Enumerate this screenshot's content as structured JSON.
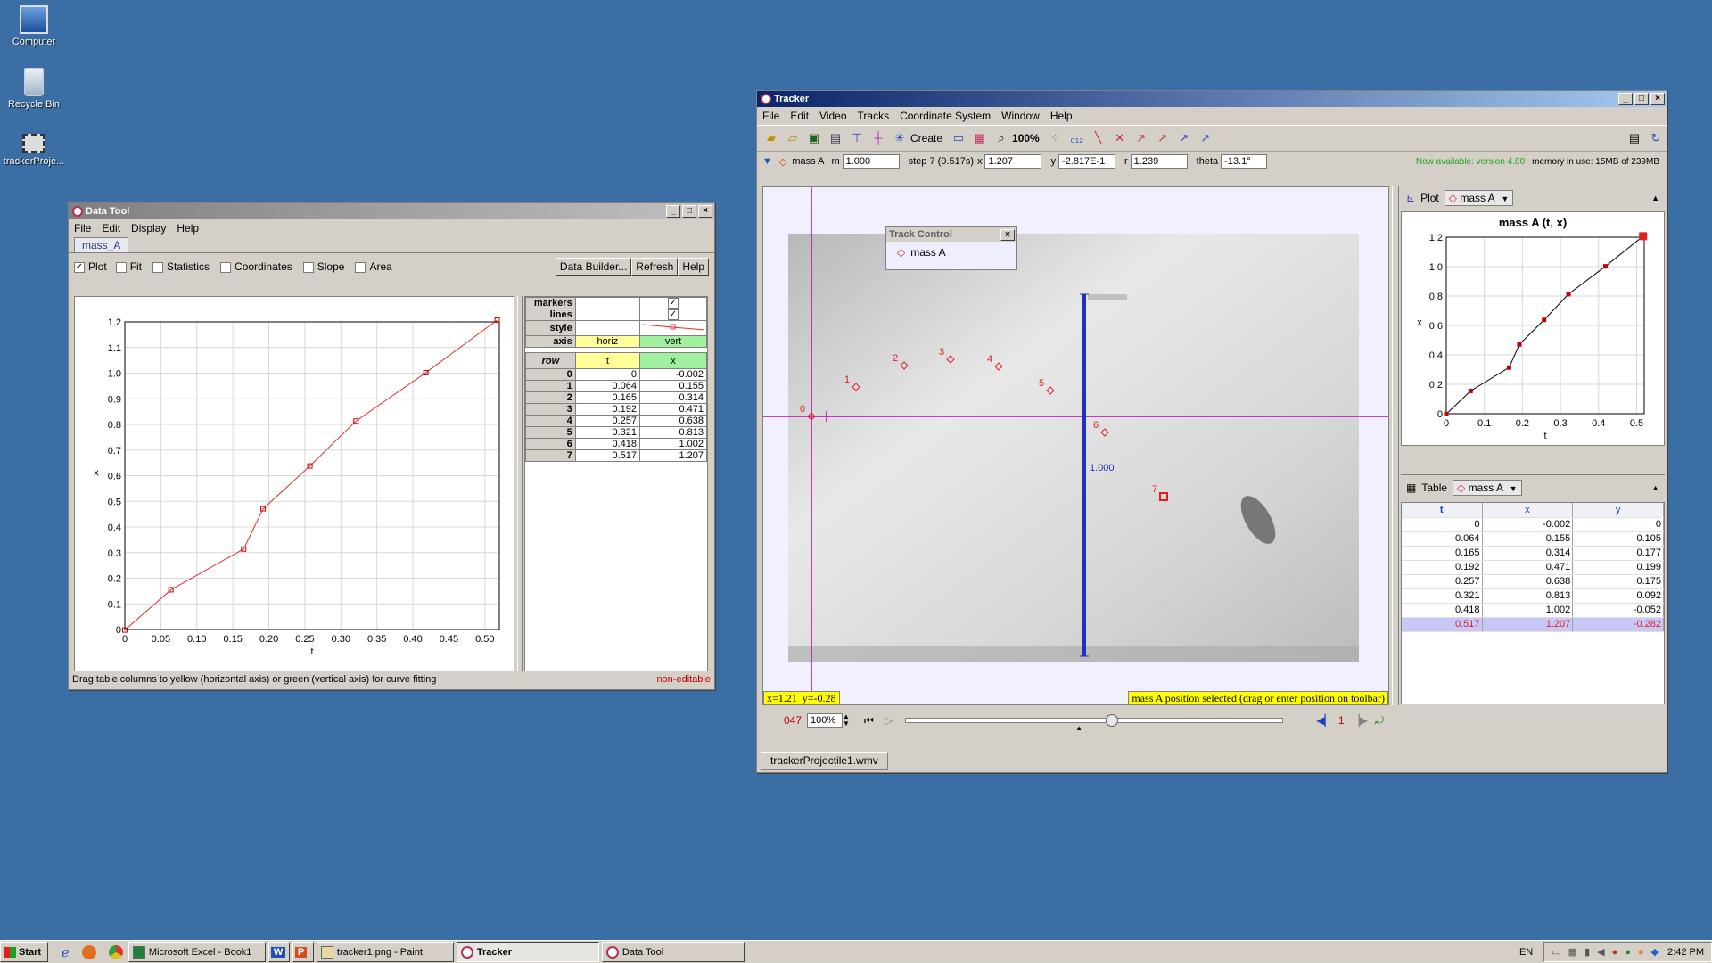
{
  "desktop": {
    "icons": [
      {
        "label": "Computer"
      },
      {
        "label": "Recycle Bin"
      },
      {
        "label": "trackerProje..."
      }
    ]
  },
  "datatool": {
    "title": "Data Tool",
    "menu": [
      "File",
      "Edit",
      "Display",
      "Help"
    ],
    "tab": "mass_A",
    "checks": {
      "plot": "Plot",
      "fit": "Fit",
      "statistics": "Statistics",
      "coordinates": "Coordinates",
      "slope": "Slope",
      "area": "Area"
    },
    "buttons": {
      "builder": "Data Builder...",
      "refresh": "Refresh",
      "help": "Help"
    },
    "props": {
      "markers": "markers",
      "lines": "lines",
      "style": "style",
      "axis": "axis",
      "horiz": "horiz",
      "vert": "vert"
    },
    "table_head": {
      "row": "row",
      "t": "t",
      "x": "x"
    },
    "rows": [
      {
        "row": "0",
        "t": "0",
        "x": "-0.002"
      },
      {
        "row": "1",
        "t": "0.064",
        "x": "0.155"
      },
      {
        "row": "2",
        "t": "0.165",
        "x": "0.314"
      },
      {
        "row": "3",
        "t": "0.192",
        "x": "0.471"
      },
      {
        "row": "4",
        "t": "0.257",
        "x": "0.638"
      },
      {
        "row": "5",
        "t": "0.321",
        "x": "0.813"
      },
      {
        "row": "6",
        "t": "0.418",
        "x": "1.002"
      },
      {
        "row": "7",
        "t": "0.517",
        "x": "1.207"
      }
    ],
    "status_left": "Drag table columns to yellow (horizontal axis) or green (vertical axis) for curve fitting",
    "status_right": "non-editable",
    "chart_data": {
      "type": "line",
      "x": [
        0,
        0.064,
        0.165,
        0.192,
        0.257,
        0.321,
        0.418,
        0.517
      ],
      "values": [
        -0.002,
        0.155,
        0.314,
        0.471,
        0.638,
        0.813,
        1.002,
        1.207
      ],
      "xlabel": "t",
      "ylabel": "x",
      "xlim": [
        0,
        0.52
      ],
      "ylim": [
        0,
        1.2
      ],
      "xticks": [
        "0",
        "0.05",
        "0.10",
        "0.15",
        "0.20",
        "0.25",
        "0.30",
        "0.35",
        "0.40",
        "0.45",
        "0.50"
      ],
      "yticks": [
        "0",
        "0.1",
        "0.2",
        "0.3",
        "0.4",
        "0.5",
        "0.6",
        "0.7",
        "0.8",
        "0.9",
        "1.0",
        "1.1",
        "1.2"
      ],
      "grid": true,
      "color": "#e03030"
    }
  },
  "tracker": {
    "title": "Tracker",
    "menu": [
      "File",
      "Edit",
      "Video",
      "Tracks",
      "Coordinate System",
      "Window",
      "Help"
    ],
    "toolbar": {
      "create": "Create",
      "zoom": "100%"
    },
    "trackbar": {
      "track": "mass A",
      "m_label": "m",
      "m": "1.000",
      "step": "step 7 (0.517s)",
      "x_label": "x",
      "x": "1.207",
      "y_label": "y",
      "y": "-2.817E-1",
      "r_label": "r",
      "r": "1.239",
      "theta_label": "theta",
      "theta": "-13.1°",
      "available": "Now available: version 4.80",
      "memory": "memory in use: 15MB of 239MB"
    },
    "track_control": {
      "title": "Track Control",
      "item": "mass A"
    },
    "video": {
      "points": [
        "0",
        "1",
        "2",
        "3",
        "4",
        "5",
        "6",
        "7"
      ],
      "stick_label": "1.000",
      "readout": "x=1.21  y=-0.28",
      "message": "mass A position selected (drag or enter position on toolbar)"
    },
    "player": {
      "frame": "047",
      "rate": "100%",
      "step": "1"
    },
    "file_tab": "trackerProjectile1.wmv",
    "plot": {
      "label": "Plot",
      "track": "mass A",
      "title": "mass A (t, x)",
      "chart_data": {
        "type": "line",
        "x": [
          0,
          0.064,
          0.165,
          0.192,
          0.257,
          0.321,
          0.418,
          0.517
        ],
        "values": [
          -0.002,
          0.155,
          0.314,
          0.471,
          0.638,
          0.813,
          1.002,
          1.207
        ],
        "xlabel": "t",
        "ylabel": "x",
        "xlim": [
          0,
          0.52
        ],
        "ylim": [
          0,
          1.2
        ],
        "xticks": [
          "0",
          "0.1",
          "0.2",
          "0.3",
          "0.4",
          "0.5"
        ],
        "yticks": [
          "0",
          "0.2",
          "0.4",
          "0.6",
          "0.8",
          "1.0",
          "1.2"
        ],
        "grid": true
      }
    },
    "table": {
      "label": "Table",
      "track": "mass A",
      "head": {
        "t": "t",
        "x": "x",
        "y": "y"
      },
      "rows": [
        {
          "t": "0",
          "x": "-0.002",
          "y": "0"
        },
        {
          "t": "0.064",
          "x": "0.155",
          "y": "0.105"
        },
        {
          "t": "0.165",
          "x": "0.314",
          "y": "0.177"
        },
        {
          "t": "0.192",
          "x": "0.471",
          "y": "0.199"
        },
        {
          "t": "0.257",
          "x": "0.638",
          "y": "0.175"
        },
        {
          "t": "0.321",
          "x": "0.813",
          "y": "0.092"
        },
        {
          "t": "0.418",
          "x": "1.002",
          "y": "-0.052"
        },
        {
          "t": "0.517",
          "x": "1.207",
          "y": "-0.282"
        }
      ]
    }
  },
  "taskbar": {
    "start": "Start",
    "items": [
      "Microsoft Excel - Book1",
      "tracker1.png - Paint",
      "Tracker",
      "Data Tool"
    ],
    "quick": [
      "W",
      "P"
    ],
    "lang": "EN",
    "clock": "2:42 PM"
  }
}
